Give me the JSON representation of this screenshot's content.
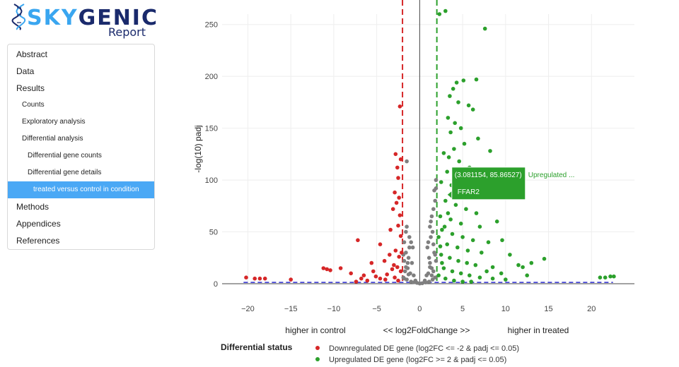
{
  "logo": {
    "brand_part1": "SKY",
    "brand_part2": "GENIC",
    "subtitle": "Report",
    "icon": "dna-helix-icon"
  },
  "toc": {
    "items": [
      {
        "label": "Abstract",
        "level": 1,
        "active": false
      },
      {
        "label": "Data",
        "level": 1,
        "active": false
      },
      {
        "label": "Results",
        "level": 1,
        "active": false
      },
      {
        "label": "Counts",
        "level": 2,
        "active": false
      },
      {
        "label": "Exploratory analysis",
        "level": 2,
        "active": false
      },
      {
        "label": "Differential analysis",
        "level": 2,
        "active": false
      },
      {
        "label": "Differential gene counts",
        "level": 3,
        "active": false
      },
      {
        "label": "Differential gene details",
        "level": 3,
        "active": false
      },
      {
        "label": "treated versus control in condition",
        "level": 4,
        "active": true
      },
      {
        "label": "Methods",
        "level": 1,
        "active": false
      },
      {
        "label": "Appendices",
        "level": 1,
        "active": false
      },
      {
        "label": "References",
        "level": 1,
        "active": false
      }
    ],
    "accent_color": "#4aa8f5"
  },
  "chart_data": {
    "type": "scatter",
    "ylabel": "-log(10) padj",
    "x_annotations": {
      "left": "higher in control",
      "center": "<< log2FoldChange >>",
      "right": "higher in treated"
    },
    "xlim": [
      -23,
      25
    ],
    "ylim": [
      0,
      260
    ],
    "x_ticks": [
      -20,
      -15,
      -10,
      -5,
      0,
      5,
      10,
      15,
      20
    ],
    "y_ticks": [
      0,
      50,
      100,
      150,
      200,
      250
    ],
    "grid": true,
    "fc_thresholds": [
      -2,
      2
    ],
    "padj_threshold_line": 1.3,
    "colors": {
      "down": "#d62728",
      "up": "#2ca02c",
      "ns": "#7f7f7f",
      "threshold": "#2a2ad0"
    },
    "legend": {
      "title": "Differential status",
      "placement": "bottom",
      "entries": [
        {
          "label": "Downregulated DE gene (log2FC <= -2 & padj <= 0.05)",
          "color": "#d62728"
        },
        {
          "label": "Upregulated DE gene (log2FC >= 2 & padj <= 0.05)",
          "color": "#2ca02c"
        }
      ]
    },
    "tooltip": {
      "coords": "(3.081154, 85.86527)",
      "status": "Upregulated ...",
      "gene": "FFAR2",
      "x": 3.081154,
      "y": 85.86527
    },
    "series": [
      {
        "name": "Downregulated DE gene (log2FC <= -2 & padj <= 0.05)",
        "color": "#d62728",
        "points": [
          [
            -2.3,
            171
          ],
          [
            -2.8,
            125
          ],
          [
            -2.6,
            112
          ],
          [
            -2.2,
            120
          ],
          [
            -2.5,
            102
          ],
          [
            -2.9,
            88
          ],
          [
            -2.4,
            83
          ],
          [
            -2.7,
            78
          ],
          [
            -3.1,
            72
          ],
          [
            -2.3,
            66
          ],
          [
            -2.5,
            56
          ],
          [
            -3.4,
            52
          ],
          [
            -2.2,
            46
          ],
          [
            -7.2,
            42
          ],
          [
            -4.6,
            38
          ],
          [
            -2.8,
            32
          ],
          [
            -3.5,
            28
          ],
          [
            -2.4,
            26
          ],
          [
            -4.1,
            22
          ],
          [
            -5.6,
            20
          ],
          [
            -3.0,
            18
          ],
          [
            -2.6,
            16
          ],
          [
            -9.2,
            15
          ],
          [
            -10.8,
            14
          ],
          [
            -11.2,
            15
          ],
          [
            -10.4,
            13
          ],
          [
            -8.0,
            10
          ],
          [
            -6.5,
            8
          ],
          [
            -5.1,
            7
          ],
          [
            -3.8,
            9
          ],
          [
            -4.6,
            5
          ],
          [
            -6.1,
            3
          ],
          [
            -7.4,
            2
          ],
          [
            -15.0,
            4
          ],
          [
            -18.0,
            5
          ],
          [
            -18.6,
            5
          ],
          [
            -19.2,
            5
          ],
          [
            -20.2,
            6
          ],
          [
            -2.2,
            12
          ],
          [
            -2.5,
            3
          ],
          [
            -3.2,
            14
          ],
          [
            -2.9,
            6
          ],
          [
            -4.0,
            4
          ],
          [
            -5.4,
            12
          ],
          [
            -6.8,
            5
          ],
          [
            -2.1,
            30
          ]
        ]
      },
      {
        "name": "Upregulated DE gene (log2FC >= 2 & padj <= 0.05)",
        "color": "#2ca02c",
        "points": [
          [
            2.3,
            260
          ],
          [
            3.0,
            263
          ],
          [
            7.6,
            246
          ],
          [
            5.1,
            196
          ],
          [
            4.3,
            194
          ],
          [
            6.6,
            197
          ],
          [
            3.5,
            181
          ],
          [
            3.9,
            188
          ],
          [
            4.5,
            175
          ],
          [
            5.7,
            172
          ],
          [
            6.2,
            168
          ],
          [
            3.3,
            160
          ],
          [
            4.1,
            155
          ],
          [
            4.8,
            150
          ],
          [
            3.6,
            146
          ],
          [
            6.8,
            140
          ],
          [
            5.2,
            135
          ],
          [
            4.0,
            130
          ],
          [
            2.8,
            126
          ],
          [
            3.4,
            122
          ],
          [
            4.6,
            118
          ],
          [
            8.2,
            128
          ],
          [
            5.8,
            112
          ],
          [
            3.2,
            108
          ],
          [
            4.4,
            104
          ],
          [
            2.5,
            98
          ],
          [
            3.7,
            95
          ],
          [
            5.0,
            92
          ],
          [
            6.0,
            90
          ],
          [
            3.0,
            80
          ],
          [
            4.2,
            76
          ],
          [
            5.4,
            72
          ],
          [
            6.6,
            68
          ],
          [
            2.4,
            65
          ],
          [
            3.6,
            62
          ],
          [
            4.8,
            58
          ],
          [
            7.0,
            55
          ],
          [
            9.0,
            60
          ],
          [
            2.6,
            52
          ],
          [
            3.8,
            48
          ],
          [
            5.0,
            45
          ],
          [
            6.2,
            42
          ],
          [
            8.0,
            40
          ],
          [
            9.6,
            42
          ],
          [
            3.2,
            38
          ],
          [
            4.4,
            35
          ],
          [
            5.6,
            32
          ],
          [
            7.2,
            30
          ],
          [
            10.5,
            28
          ],
          [
            2.5,
            28
          ],
          [
            3.5,
            25
          ],
          [
            4.5,
            22
          ],
          [
            5.5,
            20
          ],
          [
            6.5,
            18
          ],
          [
            8.5,
            16
          ],
          [
            11.5,
            18
          ],
          [
            14.5,
            24
          ],
          [
            13.0,
            20
          ],
          [
            12.0,
            16
          ],
          [
            2.8,
            15
          ],
          [
            3.8,
            12
          ],
          [
            4.8,
            10
          ],
          [
            5.8,
            8
          ],
          [
            7.0,
            6
          ],
          [
            8.5,
            5
          ],
          [
            10.0,
            4
          ],
          [
            12.5,
            8
          ],
          [
            2.2,
            8
          ],
          [
            3.0,
            5
          ],
          [
            4.0,
            3
          ],
          [
            5.0,
            2
          ],
          [
            6.0,
            2
          ],
          [
            9.5,
            10
          ],
          [
            7.8,
            12
          ],
          [
            21.0,
            6
          ],
          [
            21.6,
            6
          ],
          [
            22.2,
            7
          ],
          [
            22.6,
            7
          ],
          [
            2.2,
            45
          ],
          [
            2.4,
            36
          ],
          [
            2.6,
            20
          ],
          [
            3.3,
            68
          ],
          [
            2.9,
            55
          ]
        ]
      },
      {
        "name": "ns",
        "color": "#7f7f7f",
        "points": [
          [
            -1.5,
            55
          ],
          [
            -1.2,
            45
          ],
          [
            -1.0,
            40
          ],
          [
            -0.8,
            35
          ],
          [
            -1.6,
            30
          ],
          [
            -1.3,
            25
          ],
          [
            -1.8,
            22
          ],
          [
            -0.9,
            20
          ],
          [
            -1.4,
            15
          ],
          [
            -1.7,
            12
          ],
          [
            -1.1,
            10
          ],
          [
            -0.7,
            8
          ],
          [
            -1.9,
            6
          ],
          [
            -1.5,
            4
          ],
          [
            -0.5,
            3
          ],
          [
            -1.0,
            2
          ],
          [
            -1.6,
            50
          ],
          [
            -1.8,
            40
          ],
          [
            -1.2,
            35
          ],
          [
            -1.9,
            28
          ],
          [
            -1.4,
            20
          ],
          [
            -1.6,
            16
          ],
          [
            -1.3,
            9
          ],
          [
            -1.8,
            5
          ],
          [
            1.2,
            55
          ],
          [
            1.4,
            65
          ],
          [
            1.6,
            72
          ],
          [
            1.8,
            80
          ],
          [
            1.5,
            50
          ],
          [
            1.3,
            45
          ],
          [
            1.0,
            40
          ],
          [
            0.9,
            35
          ],
          [
            1.7,
            30
          ],
          [
            1.1,
            25
          ],
          [
            1.9,
            22
          ],
          [
            1.2,
            20
          ],
          [
            1.4,
            15
          ],
          [
            1.6,
            12
          ],
          [
            1.0,
            10
          ],
          [
            0.8,
            8
          ],
          [
            1.8,
            6
          ],
          [
            1.5,
            4
          ],
          [
            0.6,
            3
          ],
          [
            1.1,
            2
          ],
          [
            1.9,
            92
          ],
          [
            1.7,
            90
          ],
          [
            1.3,
            60
          ],
          [
            1.6,
            38
          ],
          [
            1.8,
            28
          ],
          [
            1.2,
            16
          ],
          [
            1.4,
            8
          ],
          [
            -1.5,
            118
          ],
          [
            1.9,
            100
          ],
          [
            0.3,
            0.5
          ],
          [
            -0.3,
            0.8
          ],
          [
            0.0,
            0.2
          ],
          [
            -0.6,
            1.5
          ],
          [
            0.7,
            1.2
          ]
        ]
      }
    ]
  }
}
